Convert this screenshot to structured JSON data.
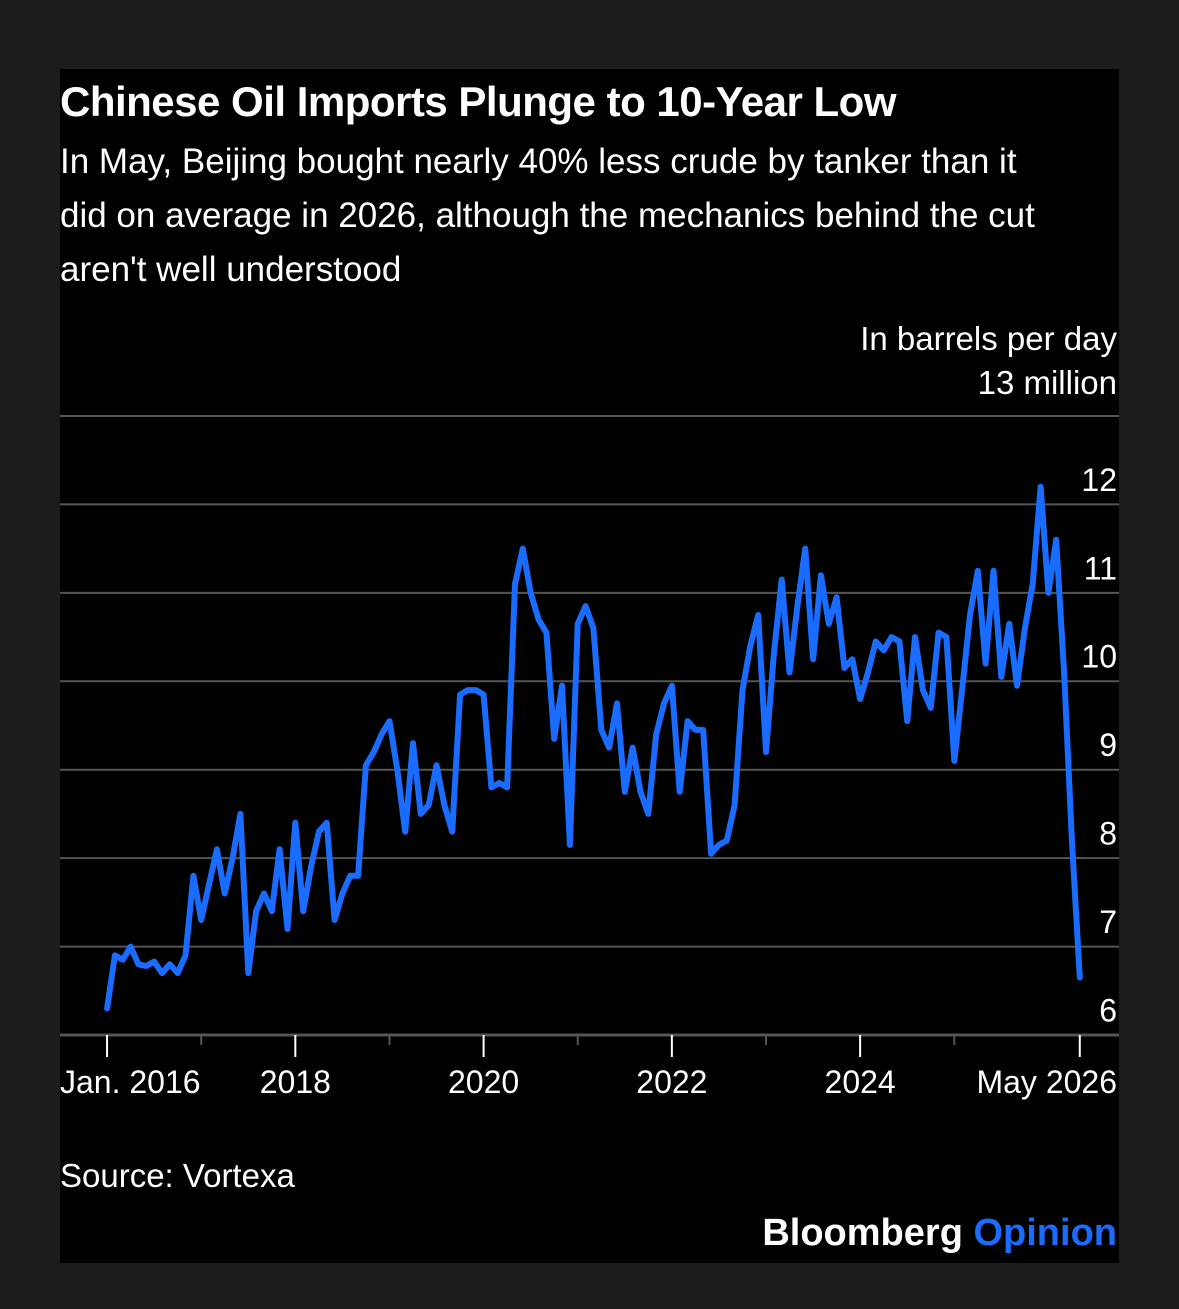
{
  "header": {
    "title": "Chinese Oil Imports Plunge to 10-Year Low",
    "subtitle": "In May, Beijing bought nearly 40% less crude by tanker than it did on average in 2026, although the mechanics behind the cut aren't well understood"
  },
  "units": {
    "line1": "In barrels per day",
    "line2": "13 million"
  },
  "footer": {
    "source": "Source: Vortexa",
    "brand_name": "Bloomberg",
    "brand_accent": "Opinion"
  },
  "colors": {
    "background": "#000000",
    "page": "#1c1c1c",
    "line": "#1a6cff",
    "grid": "#555555",
    "text": "#ffffff"
  },
  "chart_data": {
    "type": "line",
    "title": "Chinese Oil Imports Plunge to 10-Year Low",
    "ylabel": "In barrels per day",
    "ylim": [
      6,
      13
    ],
    "yticks": [
      13,
      12,
      11,
      10,
      9,
      8,
      7,
      6
    ],
    "ytick_labels": [
      "13 million",
      "12",
      "11",
      "10",
      "9",
      "8",
      "7",
      "6"
    ],
    "grid": true,
    "xlim": [
      "2015-07",
      "2026-10"
    ],
    "xtick_labels": [
      {
        "date": "2016-01",
        "label": "Jan. 2016"
      },
      {
        "date": "2018-01",
        "label": "2018"
      },
      {
        "date": "2020-01",
        "label": "2020"
      },
      {
        "date": "2022-01",
        "label": "2022"
      },
      {
        "date": "2024-01",
        "label": "2024"
      },
      {
        "date": "2026-05",
        "label": "May 2026"
      }
    ],
    "minor_ticks": [
      "2017-01",
      "2019-01",
      "2021-01",
      "2023-01",
      "2025-01"
    ],
    "series": [
      {
        "x": [
          "2016-01",
          "2016-02",
          "2016-03",
          "2016-04",
          "2016-05",
          "2016-06",
          "2016-07",
          "2016-08",
          "2016-09",
          "2016-10",
          "2016-11",
          "2016-12",
          "2017-01",
          "2017-02",
          "2017-03",
          "2017-04",
          "2017-05",
          "2017-06",
          "2017-07",
          "2017-08",
          "2017-09",
          "2017-10",
          "2017-11",
          "2017-12",
          "2018-01",
          "2018-02",
          "2018-03",
          "2018-04",
          "2018-05",
          "2018-06",
          "2018-07",
          "2018-08",
          "2018-09",
          "2018-10",
          "2018-11",
          "2018-12",
          "2019-01",
          "2019-02",
          "2019-03",
          "2019-04",
          "2019-05",
          "2019-06",
          "2019-07",
          "2019-08",
          "2019-09",
          "2019-10",
          "2019-11",
          "2019-12",
          "2020-01",
          "2020-02",
          "2020-03",
          "2020-04",
          "2020-05",
          "2020-06",
          "2020-07",
          "2020-08",
          "2020-09",
          "2020-10",
          "2020-11",
          "2020-12",
          "2021-01",
          "2021-02",
          "2021-03",
          "2021-04",
          "2021-05",
          "2021-06",
          "2021-07",
          "2021-08",
          "2021-09",
          "2021-10",
          "2021-11",
          "2021-12",
          "2022-01",
          "2022-02",
          "2022-03",
          "2022-04",
          "2022-05",
          "2022-06",
          "2022-07",
          "2022-08",
          "2022-09",
          "2022-10",
          "2022-11",
          "2022-12",
          "2023-01",
          "2023-02",
          "2023-03",
          "2023-04",
          "2023-05",
          "2023-06",
          "2023-07",
          "2023-08",
          "2023-09",
          "2023-10",
          "2023-11",
          "2023-12",
          "2024-01",
          "2024-02",
          "2024-03",
          "2024-04",
          "2024-05",
          "2024-06",
          "2024-07",
          "2024-08",
          "2024-09",
          "2024-10",
          "2024-11",
          "2024-12",
          "2025-01",
          "2025-02",
          "2025-03",
          "2025-04",
          "2025-05",
          "2025-06",
          "2025-07",
          "2025-08",
          "2025-09",
          "2025-10",
          "2025-11",
          "2025-12",
          "2026-01",
          "2026-02",
          "2026-03",
          "2026-04",
          "2026-05"
        ],
        "values": [
          6.3,
          6.9,
          6.85,
          7.0,
          6.8,
          6.78,
          6.83,
          6.7,
          6.8,
          6.7,
          6.9,
          7.8,
          7.3,
          7.7,
          8.1,
          7.6,
          8.0,
          8.5,
          6.7,
          7.4,
          7.6,
          7.4,
          8.1,
          7.2,
          8.4,
          7.4,
          7.9,
          8.3,
          8.4,
          7.3,
          7.6,
          7.8,
          7.8,
          9.05,
          9.2,
          9.4,
          9.55,
          9.0,
          8.3,
          9.3,
          8.5,
          8.6,
          9.05,
          8.6,
          8.3,
          9.85,
          9.9,
          9.9,
          9.85,
          8.8,
          8.85,
          8.8,
          11.1,
          11.5,
          11.0,
          10.7,
          10.55,
          9.35,
          9.95,
          8.15,
          10.65,
          10.85,
          10.6,
          9.45,
          9.25,
          9.75,
          8.75,
          9.25,
          8.75,
          8.5,
          9.4,
          9.75,
          9.95,
          8.75,
          9.55,
          9.45,
          9.45,
          8.05,
          8.15,
          8.2,
          8.6,
          9.9,
          10.4,
          10.75,
          9.2,
          10.3,
          11.15,
          10.1,
          10.85,
          11.5,
          10.25,
          11.2,
          10.65,
          10.95,
          10.15,
          10.25,
          9.8,
          10.1,
          10.45,
          10.35,
          10.5,
          10.45,
          9.55,
          10.5,
          9.9,
          9.7,
          10.55,
          10.5,
          9.1,
          9.9,
          10.75,
          11.25,
          10.2,
          11.25,
          10.05,
          10.65,
          9.95,
          10.6,
          11.1,
          12.2,
          11.0,
          11.6,
          10.1,
          8.2,
          6.65
        ]
      }
    ]
  }
}
